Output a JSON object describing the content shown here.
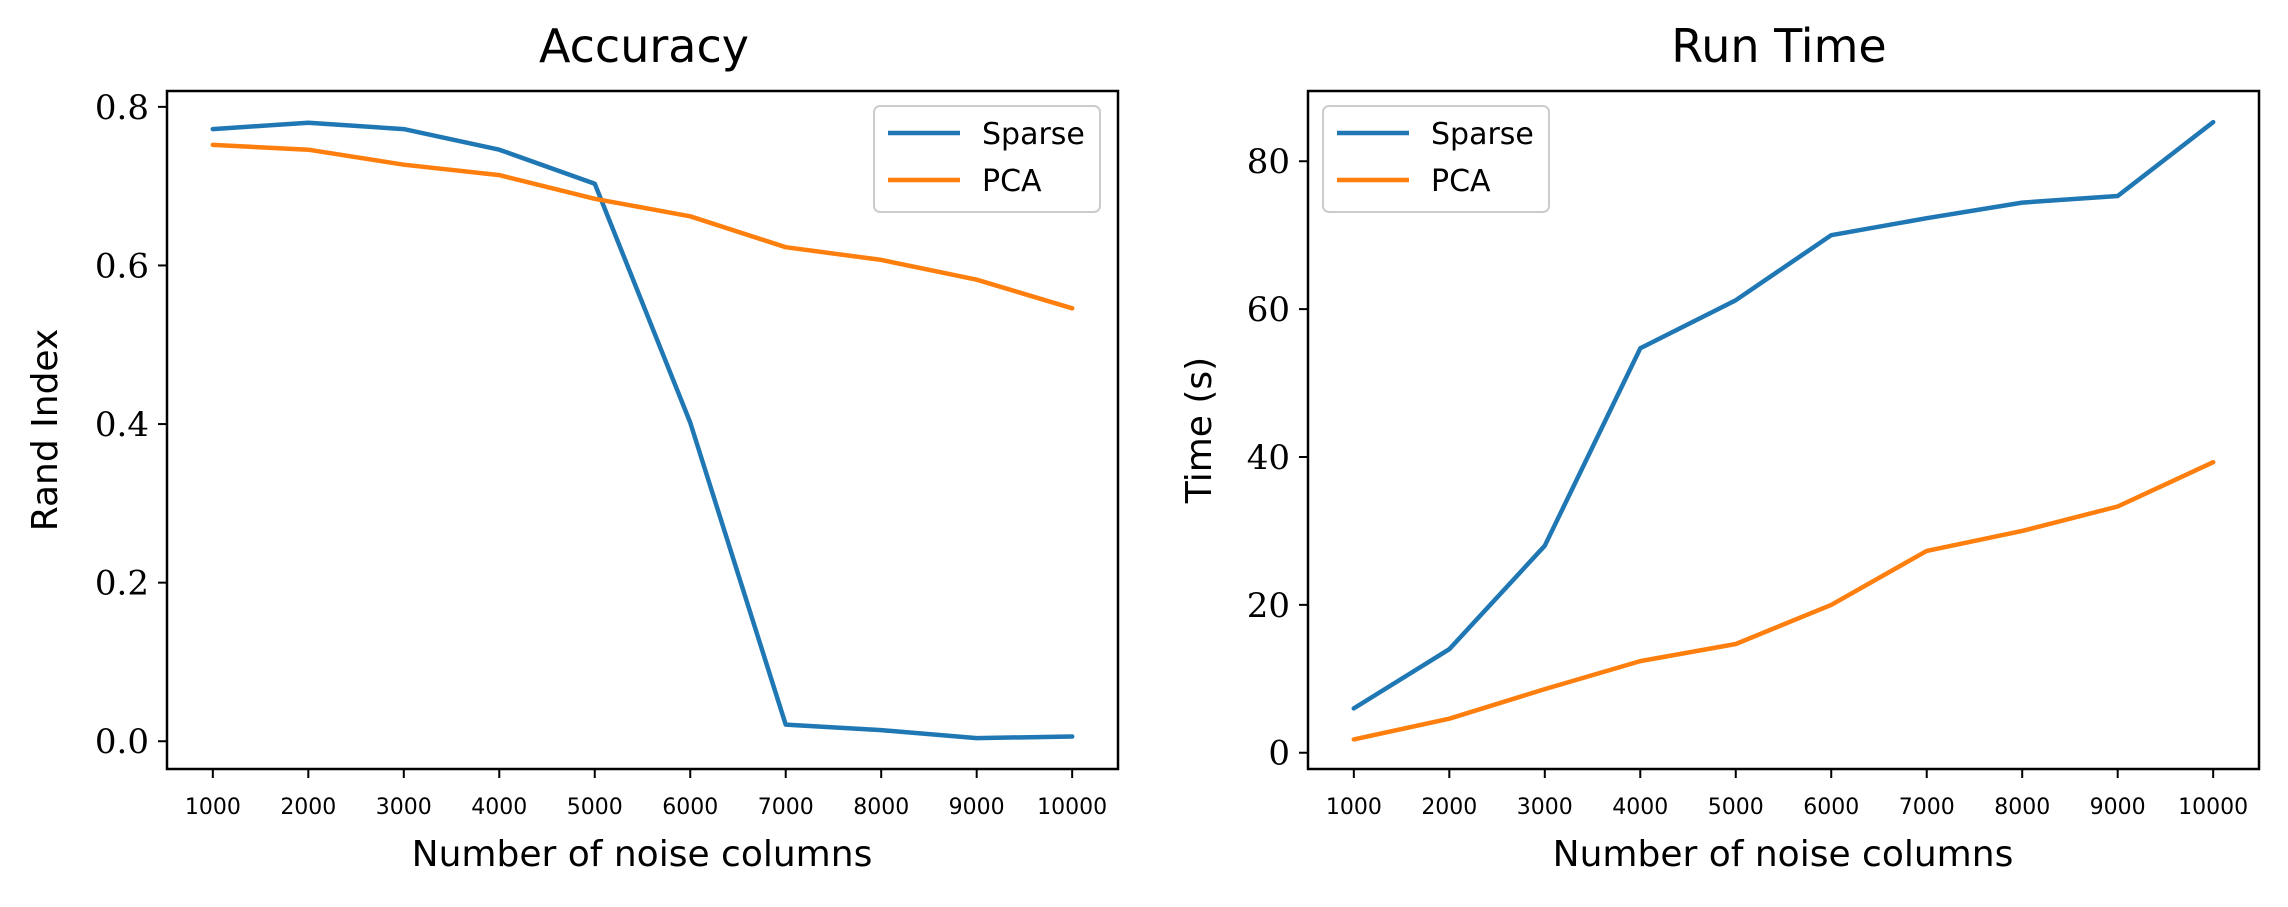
{
  "colors": {
    "sparse": "#1f77b4",
    "pca": "#ff7f0e"
  },
  "chart_data": [
    {
      "type": "line",
      "title": "Accuracy",
      "xlabel": "Number of noise columns",
      "ylabel": "Rand Index",
      "x": [
        1000,
        2000,
        3000,
        4000,
        5000,
        6000,
        7000,
        8000,
        9000,
        10000
      ],
      "xticks": [
        "1000",
        "2000",
        "3000",
        "4000",
        "5000",
        "6000",
        "7000",
        "8000",
        "9000",
        "10000"
      ],
      "xlim": [
        520,
        10480
      ],
      "ylim": [
        -0.035,
        0.82
      ],
      "yticks": [
        0.0,
        0.2,
        0.4,
        0.6,
        0.8
      ],
      "ytick_labels": [
        "0.0",
        "0.2",
        "0.4",
        "0.6",
        "0.8"
      ],
      "legend_position": "upper right",
      "grid": false,
      "series": [
        {
          "name": "Sparse",
          "color": "#1f77b4",
          "values": [
            0.772,
            0.78,
            0.772,
            0.746,
            0.703,
            0.402,
            0.021,
            0.014,
            0.004,
            0.006
          ]
        },
        {
          "name": "PCA",
          "color": "#ff7f0e",
          "values": [
            0.752,
            0.746,
            0.727,
            0.714,
            0.684,
            0.662,
            0.623,
            0.607,
            0.582,
            0.546
          ]
        }
      ]
    },
    {
      "type": "line",
      "title": "Run Time",
      "xlabel": "Number of noise columns",
      "ylabel": "Time (s)",
      "x": [
        1000,
        2000,
        3000,
        4000,
        5000,
        6000,
        7000,
        8000,
        9000,
        10000
      ],
      "xticks": [
        "1000",
        "2000",
        "3000",
        "4000",
        "5000",
        "6000",
        "7000",
        "8000",
        "9000",
        "10000"
      ],
      "xlim": [
        520,
        10480
      ],
      "ylim": [
        -2.2,
        89.5
      ],
      "yticks": [
        0,
        20,
        40,
        60,
        80
      ],
      "ytick_labels": [
        "0",
        "20",
        "40",
        "60",
        "80"
      ],
      "legend_position": "upper left",
      "grid": false,
      "series": [
        {
          "name": "Sparse",
          "color": "#1f77b4",
          "values": [
            6.0,
            14.0,
            28.0,
            54.7,
            61.2,
            70.0,
            72.3,
            74.4,
            75.3,
            85.3
          ]
        },
        {
          "name": "PCA",
          "color": "#ff7f0e",
          "values": [
            1.8,
            4.6,
            8.6,
            12.4,
            14.7,
            20.0,
            27.3,
            30.0,
            33.3,
            39.3
          ]
        }
      ]
    }
  ]
}
